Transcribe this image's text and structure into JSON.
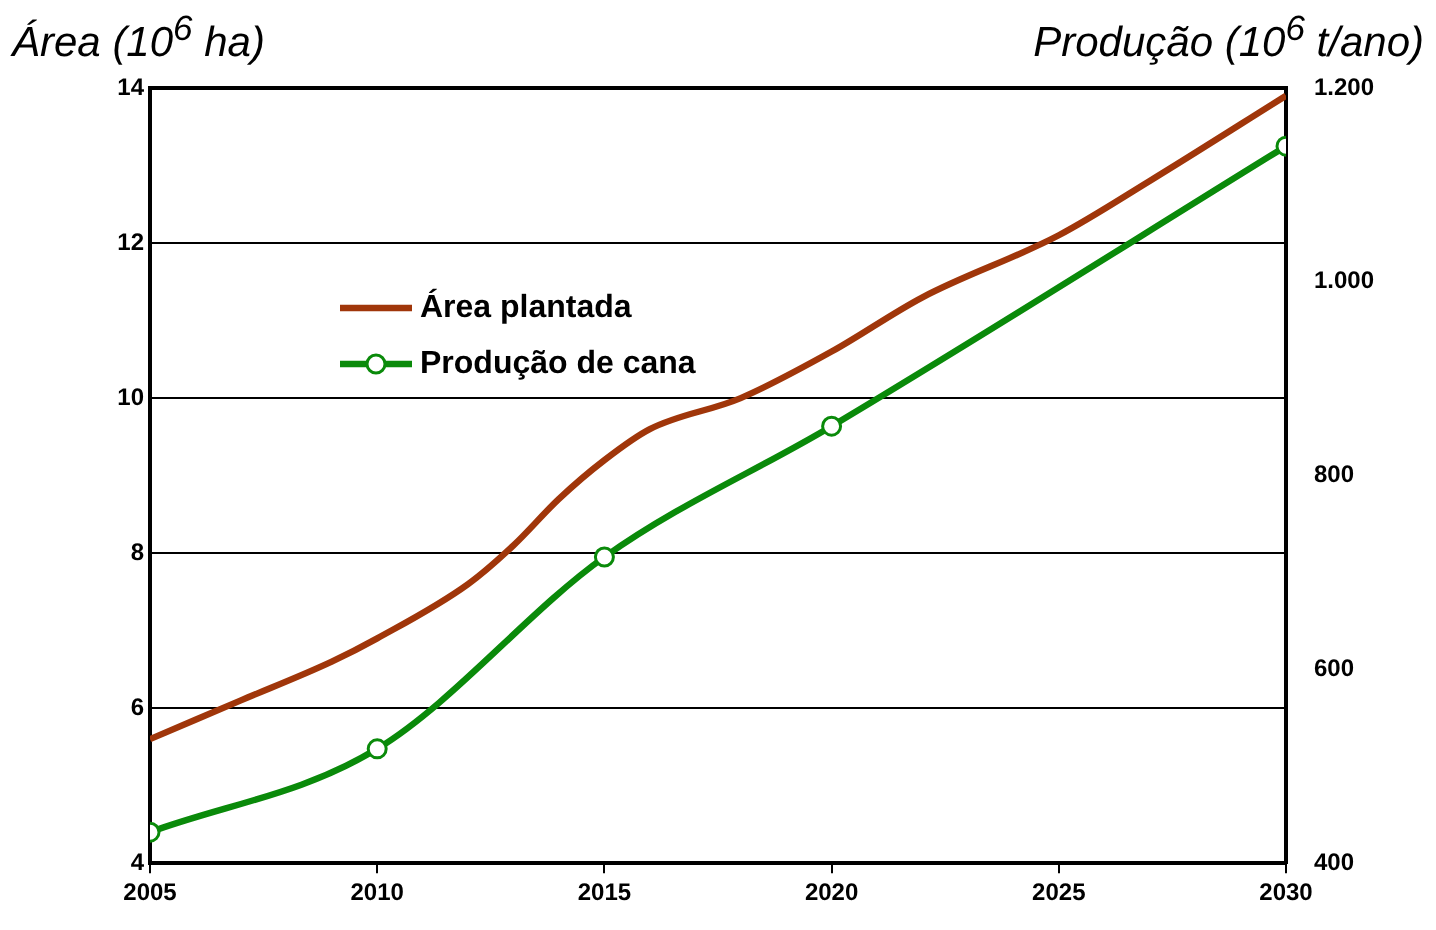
{
  "chart_data": {
    "type": "line",
    "ylabel": "Área (10$^{6}$ ha)",
    "y2label": "Produção (10$^{6}$ t/ano)",
    "xlim": [
      2005,
      2030
    ],
    "xticks": [
      2005,
      2010,
      2015,
      2020,
      2025,
      2030
    ],
    "ylim": [
      4,
      14
    ],
    "yticks": [
      4,
      6,
      8,
      10,
      12,
      14
    ],
    "y2lim": [
      400,
      1200
    ],
    "y2ticks": [
      400,
      600,
      800,
      {
        "value": 1000,
        "label": "1.000"
      },
      {
        "value": 1200,
        "label": "1.200"
      }
    ],
    "grid": "y",
    "legend": "left",
    "line_style": "solid",
    "series": [
      {
        "name": "Área plantada",
        "color": "#a0360a",
        "marker": "none",
        "x": [
          2005,
          2007,
          2009,
          2010,
          2012,
          2013,
          2014,
          2015,
          2016,
          2018,
          2020,
          2022,
          2025,
          2027,
          2030
        ],
        "values": [
          5.6,
          6.1,
          6.6,
          6.9,
          7.6,
          8.1,
          8.7,
          9.2,
          9.6,
          10.0,
          10.6,
          11.3,
          12.1,
          12.8,
          13.9
        ]
      },
      {
        "name": "Produção de cana",
        "color": "#0a8a0a",
        "marker": "circle",
        "axis": "y2",
        "x": [
          2005,
          2010,
          2015,
          2020,
          2030
        ],
        "values": [
          432,
          518,
          716,
          851,
          1140
        ]
      }
    ]
  }
}
